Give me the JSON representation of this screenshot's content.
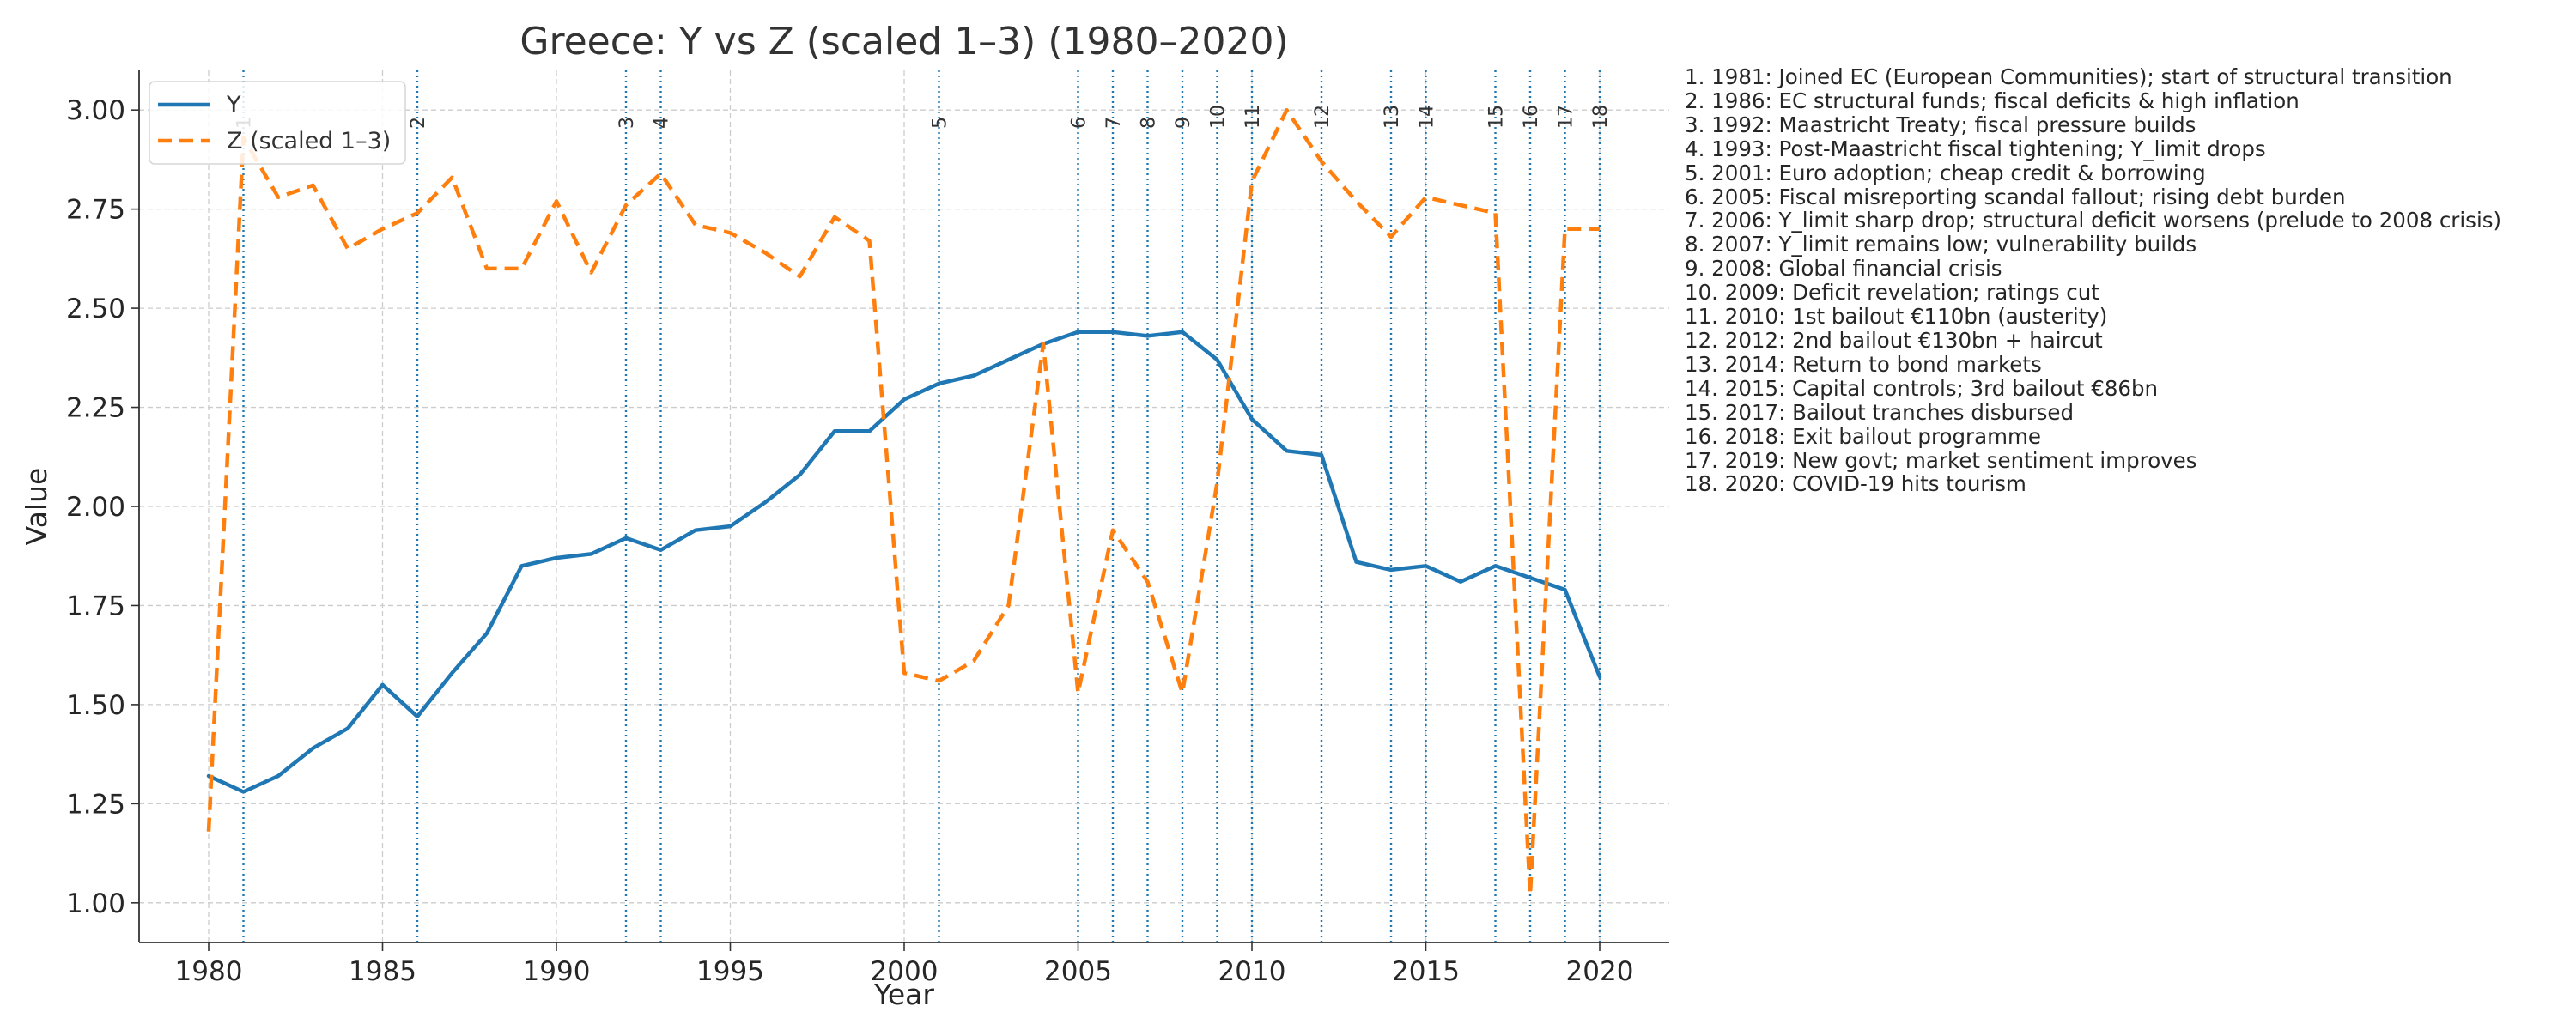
{
  "chart_data": {
    "type": "line",
    "title": "Greece: Y vs Z (scaled 1–3) (1980–2020)",
    "xlabel": "Year",
    "ylabel": "Value",
    "xlim": [
      1978,
      2022
    ],
    "ylim": [
      0.9,
      3.1
    ],
    "x_ticks": [
      1980,
      1985,
      1990,
      1995,
      2000,
      2005,
      2010,
      2015,
      2020
    ],
    "y_ticks": [
      1.0,
      1.25,
      1.5,
      1.75,
      2.0,
      2.25,
      2.5,
      2.75,
      3.0
    ],
    "grid": true,
    "legend_position": "top-left",
    "x": [
      1980,
      1981,
      1982,
      1983,
      1984,
      1985,
      1986,
      1987,
      1988,
      1989,
      1990,
      1991,
      1992,
      1993,
      1994,
      1995,
      1996,
      1997,
      1998,
      1999,
      2000,
      2001,
      2002,
      2003,
      2004,
      2005,
      2006,
      2007,
      2008,
      2009,
      2010,
      2011,
      2012,
      2013,
      2014,
      2015,
      2016,
      2017,
      2018,
      2019,
      2020
    ],
    "series": [
      {
        "name": "Y",
        "color": "#1f77b4",
        "style": "solid",
        "values": [
          1.32,
          1.28,
          1.32,
          1.39,
          1.44,
          1.55,
          1.47,
          1.58,
          1.68,
          1.85,
          1.87,
          1.88,
          1.92,
          1.89,
          1.94,
          1.95,
          2.01,
          2.08,
          2.19,
          2.19,
          2.27,
          2.31,
          2.33,
          2.37,
          2.41,
          2.44,
          2.44,
          2.43,
          2.44,
          2.37,
          2.22,
          2.14,
          2.13,
          1.86,
          1.84,
          1.85,
          1.81,
          1.85,
          1.82,
          1.79,
          1.57
        ]
      },
      {
        "name": "Z (scaled 1–3)",
        "color": "#ff7f0e",
        "style": "dashed",
        "values": [
          1.18,
          2.93,
          2.78,
          2.81,
          2.65,
          2.7,
          2.74,
          2.83,
          2.6,
          2.6,
          2.77,
          2.59,
          2.76,
          2.84,
          2.71,
          2.69,
          2.64,
          2.58,
          2.73,
          2.67,
          1.58,
          1.56,
          1.61,
          1.75,
          2.41,
          1.53,
          1.94,
          1.81,
          1.53,
          2.06,
          2.82,
          3.0,
          2.87,
          2.77,
          2.68,
          2.78,
          2.76,
          2.74,
          1.02,
          2.7,
          2.7
        ]
      }
    ],
    "event_lines": {
      "color": "#1f77b4",
      "style": "dotted",
      "events": [
        {
          "num": "1",
          "year": 1981
        },
        {
          "num": "2",
          "year": 1986
        },
        {
          "num": "3",
          "year": 1992
        },
        {
          "num": "4",
          "year": 1993
        },
        {
          "num": "5",
          "year": 2001
        },
        {
          "num": "6",
          "year": 2005
        },
        {
          "num": "7",
          "year": 2006
        },
        {
          "num": "8",
          "year": 2007
        },
        {
          "num": "9",
          "year": 2008
        },
        {
          "num": "10",
          "year": 2009
        },
        {
          "num": "11",
          "year": 2010
        },
        {
          "num": "12",
          "year": 2012
        },
        {
          "num": "13",
          "year": 2014
        },
        {
          "num": "14",
          "year": 2015
        },
        {
          "num": "15",
          "year": 2017
        },
        {
          "num": "16",
          "year": 2018
        },
        {
          "num": "17",
          "year": 2019
        },
        {
          "num": "18",
          "year": 2020
        }
      ]
    }
  },
  "notes": [
    "1. 1981: Joined EC (European Communities); start of structural transition",
    "2. 1986: EC structural funds; fiscal deficits & high inflation",
    "3. 1992: Maastricht Treaty; fiscal pressure builds",
    "4. 1993: Post-Maastricht fiscal tightening; Y_limit drops",
    "5. 2001: Euro adoption; cheap credit & borrowing",
    "6. 2005: Fiscal misreporting scandal fallout; rising debt burden",
    "7. 2006: Y_limit sharp drop; structural deficit worsens (prelude to 2008 crisis)",
    "8. 2007: Y_limit remains low; vulnerability builds",
    "9. 2008: Global financial crisis",
    "10. 2009: Deficit revelation; ratings cut",
    "11. 2010: 1st bailout €110bn (austerity)",
    "12. 2012: 2nd bailout €130bn + haircut",
    "13. 2014: Return to bond markets",
    "14. 2015: Capital controls; 3rd bailout €86bn",
    "15. 2017: Bailout tranches disbursed",
    "16. 2018: Exit bailout programme",
    "17. 2019: New govt; market sentiment improves",
    "18. 2020: COVID-19 hits tourism"
  ]
}
